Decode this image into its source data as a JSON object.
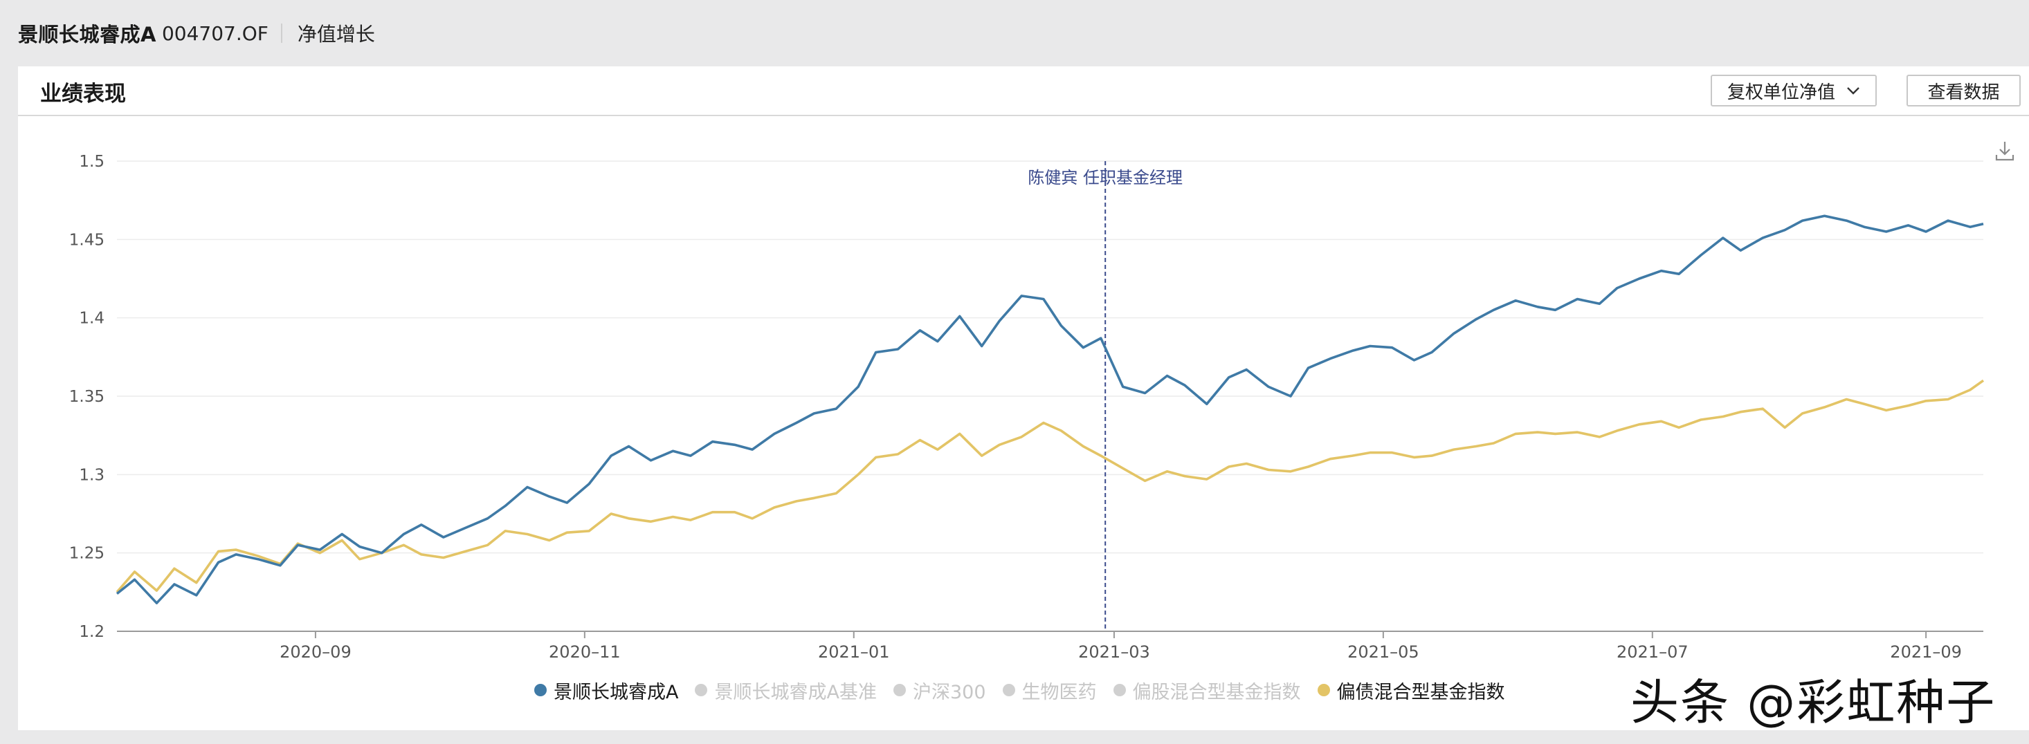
{
  "header": {
    "fund_name": "景顺长城睿成A",
    "fund_code": "004707.OF",
    "tab": "净值增长"
  },
  "panel": {
    "title": "业绩表现",
    "select_label": "复权单位净值",
    "view_button": "查看数据",
    "download_icon": "download-icon"
  },
  "watermark": "头条 @彩虹种子",
  "colors": {
    "fund": "#3f7aa6",
    "index": "#e3c466",
    "disabled": "#d0d0d0",
    "annotation": "#3a4a8c"
  },
  "chart_data": {
    "type": "line",
    "x_ticks": [
      "2020-09",
      "2020-11",
      "2021-01",
      "2021-03",
      "2021-05",
      "2021-07",
      "2021-09"
    ],
    "y_ticks": [
      "1.2",
      "1.25",
      "1.3",
      "1.35",
      "1.4",
      "1.45",
      "1.5"
    ],
    "ylim": [
      1.2,
      1.5
    ],
    "xlim": [
      "2020-07-18",
      "2021-09-14"
    ],
    "grid": true,
    "annotation": {
      "date": "2021-02-27",
      "text": "陈健宾 任职基金经理"
    },
    "legend": [
      {
        "name": "景顺长城睿成A",
        "active": true
      },
      {
        "name": "景顺长城睿成A基准",
        "active": false
      },
      {
        "name": "沪深300",
        "active": false
      },
      {
        "name": "生物医药",
        "active": false
      },
      {
        "name": "偏股混合型基金指数",
        "active": false
      },
      {
        "name": "偏债混合型基金指数",
        "active": true
      }
    ],
    "series": [
      {
        "name": "景顺长城睿成A",
        "x": [
          "2020-07-18",
          "2020-07-22",
          "2020-07-27",
          "2020-07-31",
          "2020-08-05",
          "2020-08-10",
          "2020-08-14",
          "2020-08-19",
          "2020-08-24",
          "2020-08-28",
          "2020-09-02",
          "2020-09-07",
          "2020-09-11",
          "2020-09-16",
          "2020-09-21",
          "2020-09-25",
          "2020-09-30",
          "2020-10-05",
          "2020-10-10",
          "2020-10-14",
          "2020-10-19",
          "2020-10-24",
          "2020-10-28",
          "2020-11-02",
          "2020-11-07",
          "2020-11-11",
          "2020-11-16",
          "2020-11-21",
          "2020-11-25",
          "2020-11-30",
          "2020-12-05",
          "2020-12-09",
          "2020-12-14",
          "2020-12-19",
          "2020-12-23",
          "2020-12-28",
          "2021-01-02",
          "2021-01-06",
          "2021-01-11",
          "2021-01-16",
          "2021-01-20",
          "2021-01-25",
          "2021-01-30",
          "2021-02-03",
          "2021-02-08",
          "2021-02-13",
          "2021-02-17",
          "2021-02-22",
          "2021-02-26",
          "2021-03-03",
          "2021-03-08",
          "2021-03-13",
          "2021-03-17",
          "2021-03-22",
          "2021-03-27",
          "2021-03-31",
          "2021-04-05",
          "2021-04-10",
          "2021-04-14",
          "2021-04-19",
          "2021-04-24",
          "2021-04-28",
          "2021-05-03",
          "2021-05-08",
          "2021-05-12",
          "2021-05-17",
          "2021-05-22",
          "2021-05-26",
          "2021-05-31",
          "2021-06-05",
          "2021-06-09",
          "2021-06-14",
          "2021-06-19",
          "2021-06-23",
          "2021-06-28",
          "2021-07-03",
          "2021-07-07",
          "2021-07-12",
          "2021-07-17",
          "2021-07-21",
          "2021-07-26",
          "2021-07-31",
          "2021-08-04",
          "2021-08-09",
          "2021-08-14",
          "2021-08-18",
          "2021-08-23",
          "2021-08-28",
          "2021-09-01",
          "2021-09-06",
          "2021-09-11",
          "2021-09-14"
        ],
        "values": [
          1.224,
          1.233,
          1.218,
          1.23,
          1.223,
          1.244,
          1.249,
          1.246,
          1.242,
          1.255,
          1.252,
          1.262,
          1.254,
          1.25,
          1.262,
          1.268,
          1.26,
          1.266,
          1.272,
          1.28,
          1.292,
          1.286,
          1.282,
          1.294,
          1.312,
          1.318,
          1.309,
          1.315,
          1.312,
          1.321,
          1.319,
          1.316,
          1.326,
          1.333,
          1.339,
          1.342,
          1.356,
          1.378,
          1.38,
          1.392,
          1.385,
          1.401,
          1.382,
          1.398,
          1.414,
          1.412,
          1.395,
          1.381,
          1.387,
          1.356,
          1.352,
          1.363,
          1.357,
          1.345,
          1.362,
          1.367,
          1.356,
          1.35,
          1.368,
          1.374,
          1.379,
          1.382,
          1.381,
          1.373,
          1.378,
          1.39,
          1.399,
          1.405,
          1.411,
          1.407,
          1.405,
          1.412,
          1.409,
          1.419,
          1.425,
          1.43,
          1.428,
          1.44,
          1.451,
          1.443,
          1.451,
          1.456,
          1.462,
          1.465,
          1.462,
          1.458,
          1.455,
          1.459,
          1.455,
          1.462,
          1.458,
          1.46
        ]
      },
      {
        "name": "偏债混合型基金指数",
        "x": [
          "2020-07-18",
          "2020-07-22",
          "2020-07-27",
          "2020-07-31",
          "2020-08-05",
          "2020-08-10",
          "2020-08-14",
          "2020-08-19",
          "2020-08-24",
          "2020-08-28",
          "2020-09-02",
          "2020-09-07",
          "2020-09-11",
          "2020-09-16",
          "2020-09-21",
          "2020-09-25",
          "2020-09-30",
          "2020-10-05",
          "2020-10-10",
          "2020-10-14",
          "2020-10-19",
          "2020-10-24",
          "2020-10-28",
          "2020-11-02",
          "2020-11-07",
          "2020-11-11",
          "2020-11-16",
          "2020-11-21",
          "2020-11-25",
          "2020-11-30",
          "2020-12-05",
          "2020-12-09",
          "2020-12-14",
          "2020-12-19",
          "2020-12-23",
          "2020-12-28",
          "2021-01-02",
          "2021-01-06",
          "2021-01-11",
          "2021-01-16",
          "2021-01-20",
          "2021-01-25",
          "2021-01-30",
          "2021-02-03",
          "2021-02-08",
          "2021-02-13",
          "2021-02-17",
          "2021-02-22",
          "2021-02-26",
          "2021-03-03",
          "2021-03-08",
          "2021-03-13",
          "2021-03-17",
          "2021-03-22",
          "2021-03-27",
          "2021-03-31",
          "2021-04-05",
          "2021-04-10",
          "2021-04-14",
          "2021-04-19",
          "2021-04-24",
          "2021-04-28",
          "2021-05-03",
          "2021-05-08",
          "2021-05-12",
          "2021-05-17",
          "2021-05-22",
          "2021-05-26",
          "2021-05-31",
          "2021-06-05",
          "2021-06-09",
          "2021-06-14",
          "2021-06-19",
          "2021-06-23",
          "2021-06-28",
          "2021-07-03",
          "2021-07-07",
          "2021-07-12",
          "2021-07-17",
          "2021-07-21",
          "2021-07-26",
          "2021-07-31",
          "2021-08-04",
          "2021-08-09",
          "2021-08-14",
          "2021-08-18",
          "2021-08-23",
          "2021-08-28",
          "2021-09-01",
          "2021-09-06",
          "2021-09-11",
          "2021-09-14"
        ],
        "values": [
          1.225,
          1.238,
          1.226,
          1.24,
          1.231,
          1.251,
          1.252,
          1.248,
          1.243,
          1.256,
          1.25,
          1.258,
          1.246,
          1.25,
          1.255,
          1.249,
          1.247,
          1.251,
          1.255,
          1.264,
          1.262,
          1.258,
          1.263,
          1.264,
          1.275,
          1.272,
          1.27,
          1.273,
          1.271,
          1.276,
          1.276,
          1.272,
          1.279,
          1.283,
          1.285,
          1.288,
          1.3,
          1.311,
          1.313,
          1.322,
          1.316,
          1.326,
          1.312,
          1.319,
          1.324,
          1.333,
          1.328,
          1.318,
          1.312,
          1.304,
          1.296,
          1.302,
          1.299,
          1.297,
          1.305,
          1.307,
          1.303,
          1.302,
          1.305,
          1.31,
          1.312,
          1.314,
          1.314,
          1.311,
          1.312,
          1.316,
          1.318,
          1.32,
          1.326,
          1.327,
          1.326,
          1.327,
          1.324,
          1.328,
          1.332,
          1.334,
          1.33,
          1.335,
          1.337,
          1.34,
          1.342,
          1.33,
          1.339,
          1.343,
          1.348,
          1.345,
          1.341,
          1.344,
          1.347,
          1.348,
          1.354,
          1.36
        ]
      }
    ]
  }
}
